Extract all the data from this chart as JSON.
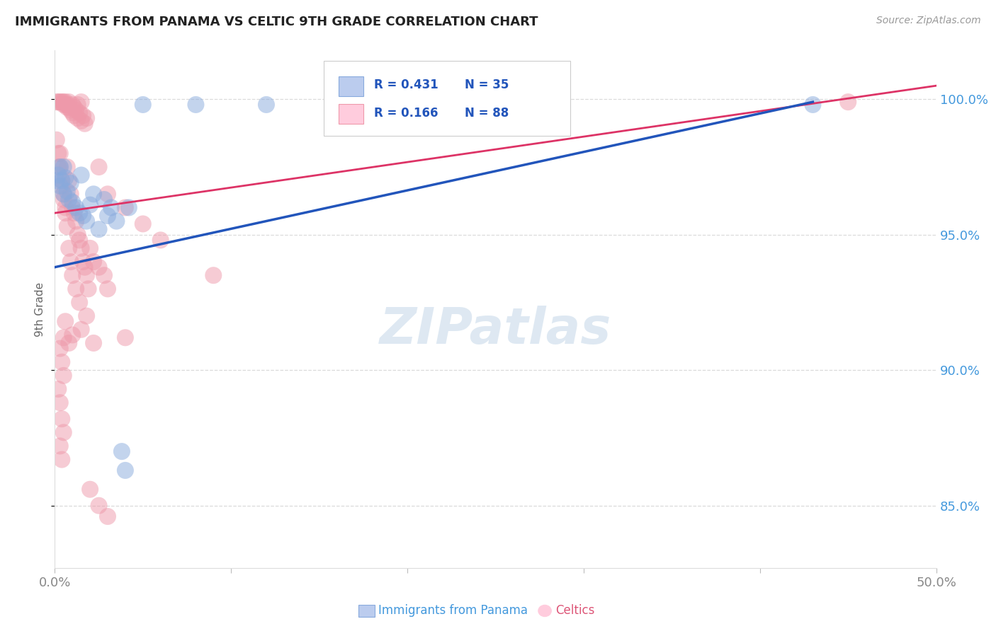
{
  "title": "IMMIGRANTS FROM PANAMA VS CELTIC 9TH GRADE CORRELATION CHART",
  "source": "Source: ZipAtlas.com",
  "ylabel": "9th Grade",
  "right_ytick_labels": [
    "85.0%",
    "90.0%",
    "95.0%",
    "100.0%"
  ],
  "right_ytick_vals": [
    0.85,
    0.9,
    0.95,
    1.0
  ],
  "legend_blue_text": "R = 0.431",
  "legend_blue_n": "N = 35",
  "legend_pink_text": "R = 0.166",
  "legend_pink_n": "N = 88",
  "bottom_legend_blue": "Immigrants from Panama",
  "bottom_legend_pink": "Celtics",
  "blue_scatter_color": "#88AADD",
  "pink_scatter_color": "#EE99AA",
  "trendline_blue_color": "#2255BB",
  "trendline_pink_color": "#DD3366",
  "xlim": [
    0.0,
    0.5
  ],
  "ylim": [
    0.827,
    1.018
  ],
  "blue_scatter_x": [
    0.001,
    0.002,
    0.003,
    0.003,
    0.004,
    0.005,
    0.006,
    0.007,
    0.008,
    0.009,
    0.01,
    0.012,
    0.014,
    0.015,
    0.016,
    0.018,
    0.02,
    0.022,
    0.025,
    0.028,
    0.03,
    0.032,
    0.035,
    0.038,
    0.04,
    0.042,
    0.005,
    0.05,
    0.08,
    0.12,
    0.16,
    0.2,
    0.24,
    0.28,
    0.43
  ],
  "blue_scatter_y": [
    0.97,
    0.972,
    0.968,
    0.975,
    0.97,
    0.965,
    0.971,
    0.966,
    0.963,
    0.969,
    0.962,
    0.96,
    0.958,
    0.972,
    0.957,
    0.955,
    0.961,
    0.965,
    0.952,
    0.963,
    0.957,
    0.96,
    0.955,
    0.87,
    0.863,
    0.96,
    0.975,
    0.998,
    0.998,
    0.998,
    0.998,
    0.998,
    0.998,
    0.998,
    0.998
  ],
  "pink_scatter_x": [
    0.001,
    0.002,
    0.003,
    0.004,
    0.005,
    0.005,
    0.006,
    0.006,
    0.007,
    0.007,
    0.008,
    0.008,
    0.009,
    0.01,
    0.01,
    0.011,
    0.011,
    0.012,
    0.013,
    0.013,
    0.014,
    0.015,
    0.015,
    0.016,
    0.017,
    0.018,
    0.001,
    0.002,
    0.003,
    0.004,
    0.005,
    0.006,
    0.007,
    0.008,
    0.009,
    0.01,
    0.011,
    0.012,
    0.013,
    0.014,
    0.015,
    0.016,
    0.017,
    0.018,
    0.019,
    0.02,
    0.022,
    0.025,
    0.028,
    0.03,
    0.002,
    0.003,
    0.004,
    0.005,
    0.006,
    0.007,
    0.008,
    0.009,
    0.01,
    0.012,
    0.014,
    0.003,
    0.004,
    0.005,
    0.002,
    0.003,
    0.004,
    0.005,
    0.003,
    0.004,
    0.025,
    0.03,
    0.04,
    0.05,
    0.006,
    0.008,
    0.02,
    0.025,
    0.03,
    0.022,
    0.018,
    0.015,
    0.01,
    0.005,
    0.45,
    0.04,
    0.06,
    0.09
  ],
  "pink_scatter_y": [
    0.999,
    0.999,
    0.999,
    0.999,
    0.999,
    0.998,
    0.999,
    0.998,
    0.998,
    0.997,
    0.999,
    0.997,
    0.996,
    0.998,
    0.995,
    0.997,
    0.994,
    0.996,
    0.998,
    0.993,
    0.995,
    0.999,
    0.992,
    0.994,
    0.991,
    0.993,
    0.985,
    0.975,
    0.98,
    0.97,
    0.965,
    0.96,
    0.975,
    0.97,
    0.965,
    0.96,
    0.958,
    0.955,
    0.95,
    0.948,
    0.945,
    0.94,
    0.938,
    0.935,
    0.93,
    0.945,
    0.94,
    0.938,
    0.935,
    0.93,
    0.98,
    0.975,
    0.968,
    0.963,
    0.958,
    0.953,
    0.945,
    0.94,
    0.935,
    0.93,
    0.925,
    0.908,
    0.903,
    0.898,
    0.893,
    0.888,
    0.882,
    0.877,
    0.872,
    0.867,
    0.975,
    0.965,
    0.96,
    0.954,
    0.918,
    0.91,
    0.856,
    0.85,
    0.846,
    0.91,
    0.92,
    0.915,
    0.913,
    0.912,
    0.999,
    0.912,
    0.948,
    0.935
  ],
  "blue_trendline_x": [
    0.0,
    0.43
  ],
  "blue_trendline_y": [
    0.938,
    0.999
  ],
  "pink_trendline_x": [
    0.0,
    0.5
  ],
  "pink_trendline_y": [
    0.958,
    1.005
  ],
  "grid_color": "#CCCCCC",
  "right_tick_color": "#4499DD",
  "watermark_color": "#C8DAEA",
  "watermark_alpha": 0.6
}
